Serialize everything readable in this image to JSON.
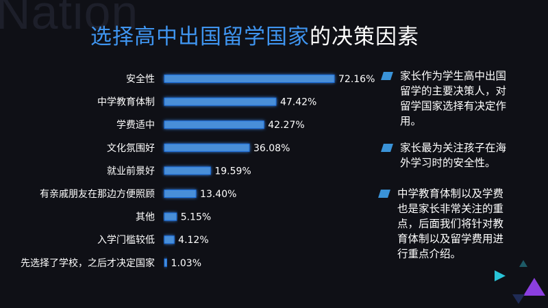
{
  "watermark": "Nation",
  "title": {
    "highlight": "选择高中出国留学国家",
    "rest": "的决策因素"
  },
  "chart_data": {
    "type": "bar",
    "orientation": "horizontal",
    "categories": [
      "安全性",
      "中学教育体制",
      "学费适中",
      "文化氛围好",
      "就业前景好",
      "有亲戚朋友在那边方便照顾",
      "其他",
      "入学门槛较低",
      "先选择了学校，之后才决定国家"
    ],
    "values": [
      72.16,
      47.42,
      42.27,
      36.08,
      19.59,
      13.4,
      5.15,
      4.12,
      1.03
    ],
    "value_labels": [
      "72.16%",
      "47.42%",
      "42.27%",
      "36.08%",
      "19.59%",
      "13.40%",
      "5.15%",
      "4.12%",
      "1.03%"
    ],
    "unit": "%",
    "title": "选择高中出国留学国家的决策因素",
    "xlabel": "",
    "ylabel": "",
    "xlim": [
      0,
      72.16
    ],
    "grid": false,
    "legend": "none",
    "bar_color": "#4a8fd8",
    "bar_glow_color": "#1c6fe0"
  },
  "notes": [
    {
      "lines": [
        "家长作为学生高中出国",
        "留学的主要决策人，对",
        "留学国家选择有决定作",
        "用。"
      ]
    },
    {
      "lines": [
        "家长最为关注孩子在海",
        "外学习时的安全性。"
      ]
    },
    {
      "lines": [
        "中学教育体制以及学费",
        "也是家长非常关注的重",
        "点，后面我们将针对教",
        "育体制以及留学费用进",
        "行重点介绍。"
      ]
    }
  ],
  "colors": {
    "background": "#0f1016",
    "title_highlight": "#3f95f0",
    "note_icon": "#3a93d8",
    "accent_cyan": "#29c4d8",
    "accent_purple": "#8b3fe0"
  }
}
